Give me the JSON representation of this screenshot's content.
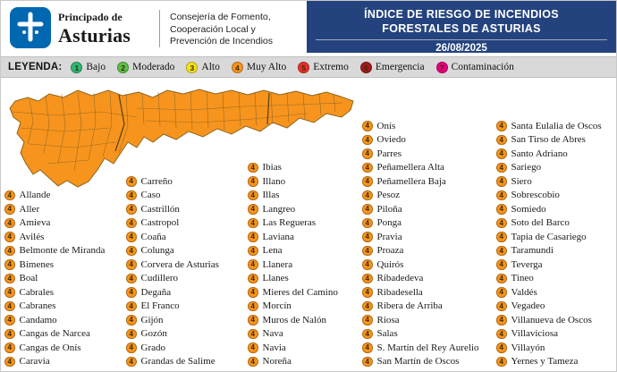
{
  "header": {
    "org_line1": "Principado de",
    "org_line2": "Asturias",
    "department_lines": [
      "Consejería de Fomento,",
      "Cooperación Local y",
      "Prevención de Incendios"
    ],
    "title_line1": "ÍNDICE DE RIESGO DE INCENDIOS",
    "title_line2": "FORESTALES DE ASTURIAS",
    "date": "26/08/2025",
    "title_bg": "#24437E",
    "logo_color": "#0067B1"
  },
  "legend": {
    "label": "LEYENDA:",
    "items": [
      {
        "level": "1",
        "label": "Bajo",
        "color": "#2EB673"
      },
      {
        "level": "2",
        "label": "Moderado",
        "color": "#5BBF4A"
      },
      {
        "level": "3",
        "label": "Alto",
        "color": "#F5E31C"
      },
      {
        "level": "4",
        "label": "Muy Alto",
        "color": "#F7941D"
      },
      {
        "level": "5",
        "label": "Extremo",
        "color": "#E8312A"
      },
      {
        "level": "6",
        "label": "Emergencia",
        "color": "#9E1B1B"
      },
      {
        "level": "7",
        "label": "Contaminación",
        "color": "#E5007E"
      }
    ]
  },
  "map": {
    "name": "Mapa de concejos de Asturias",
    "fill": "#F7941D",
    "border": "#8a6420"
  },
  "municipalities": {
    "risk_level": "4",
    "badge_color": "#F7941D",
    "columns": [
      [
        "Allande",
        "Aller",
        "Amieva",
        "Avilés",
        "Belmonte de Miranda",
        "Bimenes",
        "Boal",
        "Cabrales",
        "Cabranes",
        "Candamo",
        "Cangas de Narcea",
        "Cangas de Onís",
        "Caravia"
      ],
      [
        "Carreño",
        "Caso",
        "Castrillón",
        "Castropol",
        "Coaña",
        "Colunga",
        "Corvera de Asturias",
        "Cudillero",
        "Degaña",
        "El Franco",
        "Gijón",
        "Gozón",
        "Grado",
        "Grandas de Salime"
      ],
      [
        "Ibias",
        "Illano",
        "Illas",
        "Langreo",
        "Las Regueras",
        "Laviana",
        "Lena",
        "Llanera",
        "Llanes",
        "Mieres del Camino",
        "Morcín",
        "Muros de Nalón",
        "Nava",
        "Navia",
        "Noreña"
      ],
      [
        "Onís",
        "Oviedo",
        "Parres",
        "Peñamellera Alta",
        "Peñamellera Baja",
        "Pesoz",
        "Piloña",
        "Ponga",
        "Pravia",
        "Proaza",
        "Quirós",
        "Ribadedeva",
        "Ribadesella",
        "Ribera de Arriba",
        "Riosa",
        "Salas",
        "S. Martín del Rey Aurelio",
        "San Martín de Oscos"
      ],
      [
        "Santa Eulalia de Oscos",
        "San Tirso de Abres",
        "Santo Adriano",
        "Sariego",
        "Siero",
        "Sobrescobio",
        "Somiedo",
        "Soto del Barco",
        "Tapia de Casariego",
        "Taramundi",
        "Teverga",
        "Tineo",
        "Valdés",
        "Vegadeo",
        "Villanueva de Oscos",
        "Villaviciosa",
        "Villayón",
        "Yernes y Tameza"
      ]
    ]
  }
}
